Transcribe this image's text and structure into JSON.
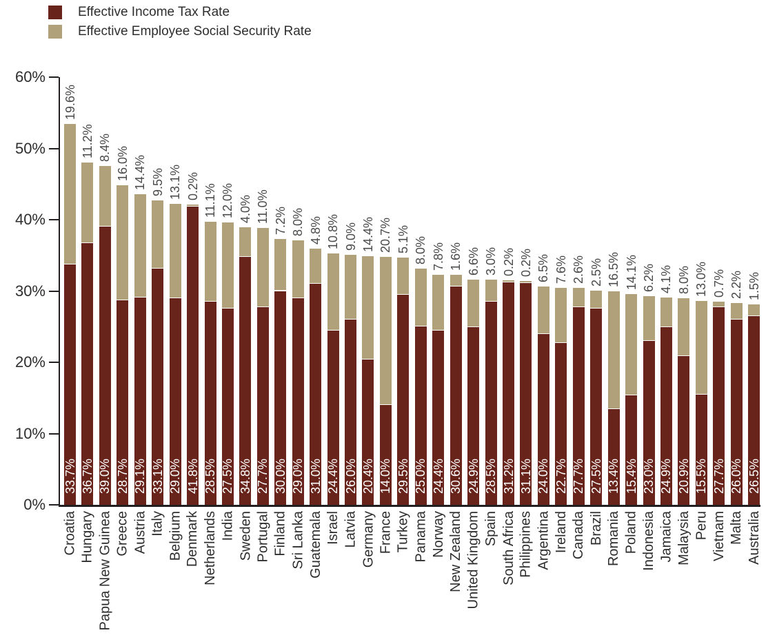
{
  "palette": {
    "income": "#68241B",
    "social": "#B1A17B",
    "axis": "#231F20",
    "text_dark": "#2E2E2E",
    "top_label_text": "#4A4A4A",
    "inner_label_text": "#FFFFFF",
    "background": "#FFFFFF"
  },
  "legend": {
    "items": [
      {
        "label": "Effective Income Tax Rate",
        "color": "#68241B"
      },
      {
        "label": "Effective Employee Social Security Rate",
        "color": "#B1A17B"
      }
    ]
  },
  "chart_data": {
    "type": "bar",
    "stacked": true,
    "title": "",
    "xlabel": "",
    "ylabel": "",
    "ylim": [
      0,
      60
    ],
    "ytick_labels": [
      "0%",
      "10%",
      "20%",
      "30%",
      "40%",
      "50%",
      "60%"
    ],
    "grid": false,
    "legend_position": "top-left",
    "bar_orientation": "vertical",
    "value_label_format": "{value}%",
    "categories": [
      "Croatia",
      "Hungary",
      "Papua New Guinea",
      "Greece",
      "Austria",
      "Italy",
      "Belgium",
      "Denmark",
      "Netherlands",
      "India",
      "Sweden",
      "Portugal",
      "Finland",
      "Sri Lanka",
      "Guatemala",
      "Israel",
      "Latvia",
      "Germany",
      "France",
      "Turkey",
      "Panama",
      "Norway",
      "New Zealand",
      "United Kingdom",
      "Spain",
      "South Africa",
      "Philippines",
      "Argentina",
      "Ireland",
      "Canada",
      "Brazil",
      "Romania",
      "Poland",
      "Indonesia",
      "Jamaica",
      "Malaysia",
      "Peru",
      "Vietnam",
      "Malta",
      "Australia"
    ],
    "series": [
      {
        "name": "Effective Income Tax Rate",
        "color": "#68241B",
        "label_position": "inside-bottom",
        "values": [
          33.7,
          36.7,
          39.0,
          28.7,
          29.1,
          33.1,
          29.0,
          41.8,
          28.5,
          27.5,
          34.8,
          27.7,
          30.0,
          29.0,
          31.0,
          24.4,
          26.0,
          20.4,
          14.0,
          29.5,
          25.0,
          24.4,
          30.6,
          24.9,
          28.5,
          31.2,
          31.1,
          24.0,
          22.7,
          27.7,
          27.5,
          13.4,
          15.4,
          23.0,
          24.9,
          20.9,
          15.5,
          27.7,
          26.0,
          26.5
        ]
      },
      {
        "name": "Effective Employee Social Security Rate",
        "color": "#B1A17B",
        "label_position": "above-bar",
        "values": [
          19.6,
          11.2,
          8.4,
          16.0,
          14.4,
          9.5,
          13.1,
          0.2,
          11.1,
          12.0,
          4.0,
          11.0,
          7.2,
          8.0,
          4.8,
          10.8,
          9.0,
          14.4,
          20.7,
          5.1,
          8.0,
          7.8,
          1.6,
          6.6,
          3.0,
          0.2,
          0.2,
          6.5,
          7.6,
          2.6,
          2.5,
          16.5,
          14.1,
          6.2,
          4.1,
          8.0,
          13.0,
          0.7,
          2.2,
          1.5
        ]
      }
    ]
  }
}
